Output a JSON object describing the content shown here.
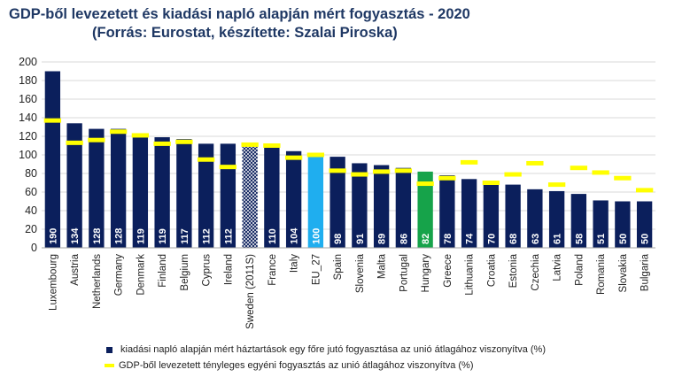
{
  "chart_data": {
    "type": "bar",
    "title": "GDP-ből levezetett és kiadási napló alapján mért fogyasztás - 2020",
    "subtitle": "(Forrás: Eurostat, készítette: Szalai Piroska)",
    "categories": [
      "Luxembourg",
      "Austria",
      "Netherlands",
      "Germany",
      "Denmark",
      "Finland",
      "Belgium",
      "Cyprus",
      "Ireland",
      "Sweden (2011S)",
      "France",
      "Italy",
      "EU_27",
      "Spain",
      "Slovenia",
      "Malta",
      "Portugal",
      "Hungary",
      "Greece",
      "Lithuania",
      "Croatia",
      "Estonia",
      "Czechia",
      "Latvia",
      "Poland",
      "Romania",
      "Slovakia",
      "Bulgaria"
    ],
    "series": [
      {
        "name": "kiadási napló alapján mért háztartások egy főre jutó fogyasztása az unió átlagához viszonyítva (%)",
        "type": "bar",
        "values": [
          190,
          134,
          128,
          128,
          119,
          119,
          117,
          112,
          112,
          110,
          110,
          104,
          100,
          98,
          91,
          89,
          86,
          82,
          78,
          74,
          70,
          68,
          63,
          61,
          58,
          51,
          50,
          50
        ],
        "value_labels": [
          "190",
          "134",
          "128",
          "128",
          "119",
          "119",
          "117",
          "112",
          "112",
          "",
          "110",
          "104",
          "100",
          "98",
          "91",
          "89",
          "86",
          "82",
          "78",
          "74",
          "70",
          "68",
          "63",
          "61",
          "58",
          "51",
          "50",
          "50"
        ]
      },
      {
        "name": "GDP-ből levezetett tényleges egyéni fogyasztás  az unió átlagához viszonyítva (%)",
        "type": "marker",
        "values": [
          137,
          113,
          116,
          125,
          121,
          112,
          114,
          95,
          87,
          111,
          110,
          97,
          100,
          83,
          79,
          82,
          83,
          69,
          75,
          92,
          70,
          79,
          91,
          68,
          86,
          81,
          75,
          62
        ]
      }
    ],
    "highlight": {
      "EU_27": "#1FAEEF",
      "Hungary": "#16A34A",
      "Sweden (2011S)": "hatched"
    },
    "colors": {
      "bar": "#0B1F5C",
      "marker": "#FFFF00",
      "title": "#1F3864"
    },
    "yticks": [
      "0",
      "20",
      "40",
      "60",
      "80",
      "100",
      "120",
      "140",
      "160",
      "180",
      "200"
    ],
    "ylim": [
      0,
      200
    ],
    "grid": true,
    "legend_position": "bottom"
  }
}
